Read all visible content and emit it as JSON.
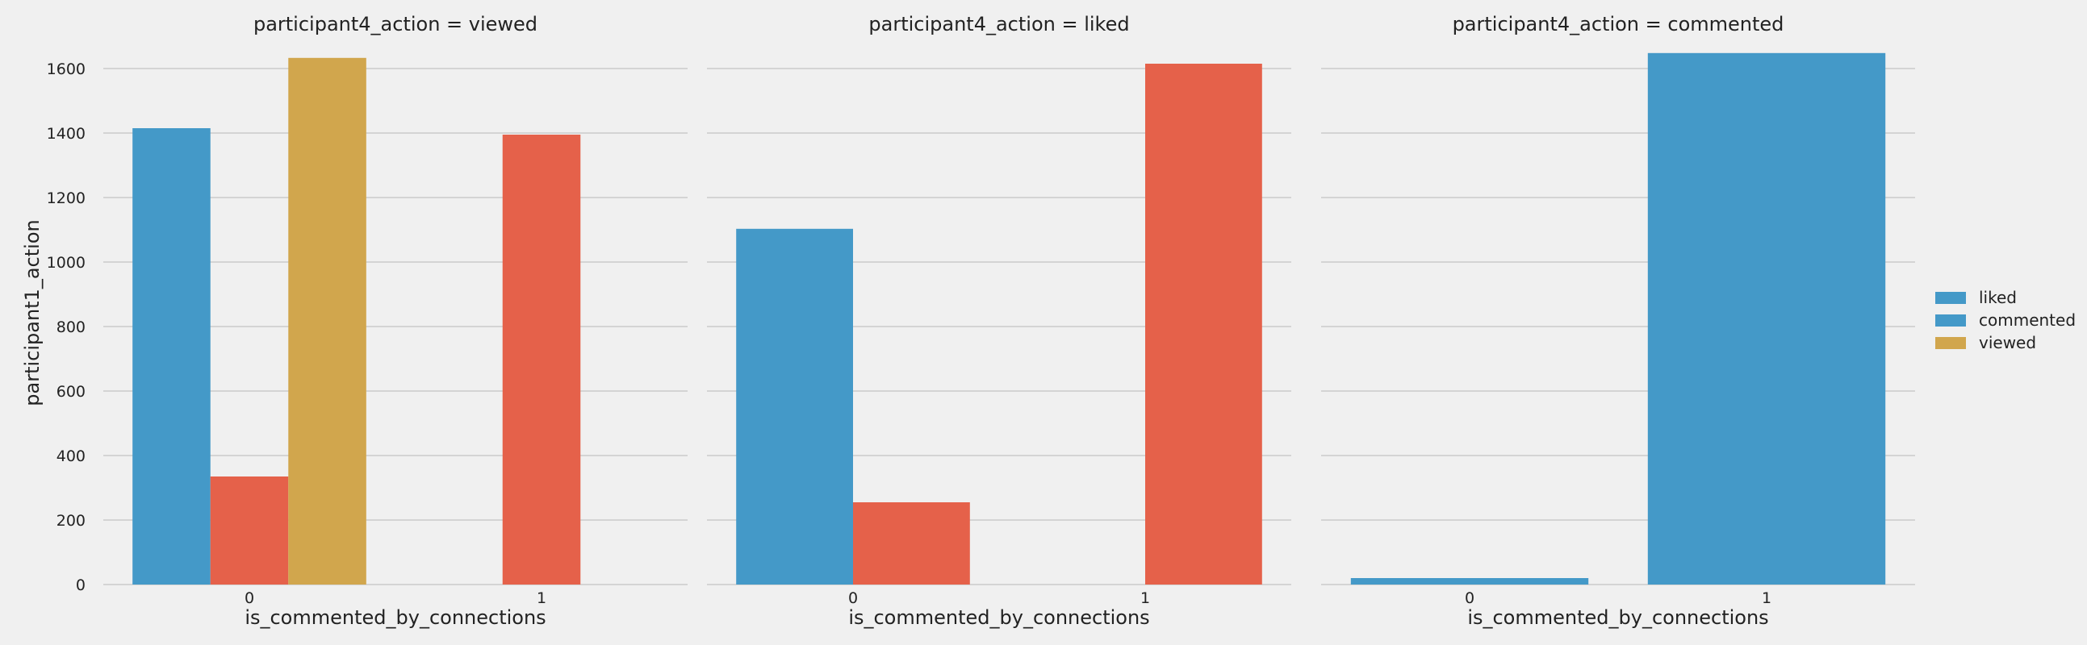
{
  "chart_data": {
    "type": "bar",
    "ylabel": "participant1_action",
    "ylim": [
      0,
      1700
    ],
    "yticks": [
      0,
      200,
      400,
      600,
      800,
      1000,
      1200,
      1400,
      1600
    ],
    "grid": true,
    "legend": {
      "placement": "right",
      "entries": [
        {
          "label": "liked",
          "color": "#4499c8"
        },
        {
          "label": "commented",
          "color": "#4499c8"
        },
        {
          "label": "viewed",
          "color": "#d1a64d"
        }
      ]
    },
    "panels": [
      {
        "title": "participant4_action = viewed",
        "xlabel": "is_commented_by_connections",
        "categories": [
          "0",
          "1"
        ],
        "hue_count": 3,
        "series": [
          {
            "color": "#4499c8",
            "values": [
              1415,
              null
            ]
          },
          {
            "color": "#e5614a",
            "values": [
              335,
              1395
            ]
          },
          {
            "color": "#d1a64d",
            "values": [
              1633,
              null
            ]
          }
        ]
      },
      {
        "title": "participant4_action = liked",
        "xlabel": "is_commented_by_connections",
        "categories": [
          "0",
          "1"
        ],
        "hue_count": 2,
        "series": [
          {
            "color": "#4499c8",
            "values": [
              1103,
              null
            ]
          },
          {
            "color": "#e5614a",
            "values": [
              255,
              1615
            ]
          }
        ]
      },
      {
        "title": "participant4_action = commented",
        "xlabel": "is_commented_by_connections",
        "categories": [
          "0",
          "1"
        ],
        "hue_count": 1,
        "series": [
          {
            "color": "#4499c8",
            "values": [
              20,
              1648
            ]
          }
        ]
      }
    ]
  }
}
